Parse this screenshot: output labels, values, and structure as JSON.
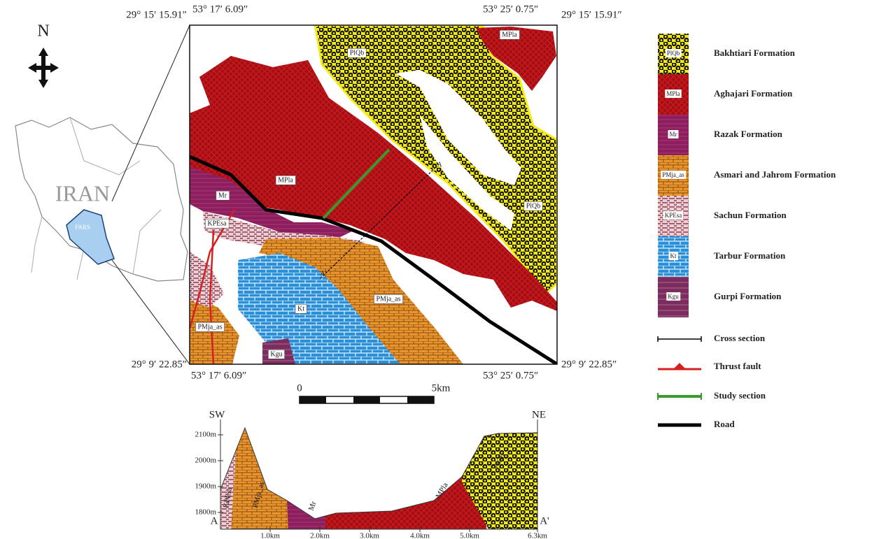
{
  "north": "N",
  "inset": {
    "country": "IRAN",
    "province": "FARS"
  },
  "coordinates": {
    "top_left_lat": "29° 15′ 15.91″",
    "top_left_lon": "53° 17′ 6.09″",
    "top_right_lon": "53° 25′ 0.75″",
    "top_right_lat": "29° 15′ 15.91″",
    "bottom_left_lat": "29° 9′ 22.85″",
    "bottom_right_lat": "29° 9′ 22.85″",
    "bottom_left_lon": "53° 17′ 6.09″",
    "bottom_right_lon": "53° 25′ 0.75″"
  },
  "map_labels": [
    "PlQb",
    "MPla",
    "MPla",
    "Mr",
    "KPEsa",
    "PMja_as",
    "Kt",
    "Kgu",
    "PMja_as",
    "PlQb",
    "A",
    "A'"
  ],
  "scale_bar": {
    "start": "0",
    "end": "5km"
  },
  "legend": {
    "formations": [
      {
        "code": "PlQb",
        "name": "Bakhtiari Formation"
      },
      {
        "code": "MPla",
        "name": "Aghajari Formation"
      },
      {
        "code": "Mr",
        "name": "Razak Formation"
      },
      {
        "code": "PMja_as",
        "name": "Asmari and Jahrom Formation"
      },
      {
        "code": "KPEsa",
        "name": "Sachun Formation"
      },
      {
        "code": "Kt",
        "name": "Tarbur Formation"
      },
      {
        "code": "Kgu",
        "name": "Gurpi Formation"
      }
    ],
    "lines": [
      "Cross section",
      "Thrust fault",
      "Study section",
      "Road"
    ]
  },
  "cross_section": {
    "left": "SW",
    "right": "NE",
    "elevations": [
      "2100m",
      "2000m",
      "1900m",
      "1800m"
    ],
    "distances": [
      "1.0km",
      "2.0km",
      "3.0km",
      "4.0km",
      "5.0km",
      "6.3km"
    ],
    "start": "A",
    "end": "A'",
    "units": [
      "KPEsa",
      "PMja_as",
      "Mr",
      "MPla",
      "PlQb"
    ]
  }
}
